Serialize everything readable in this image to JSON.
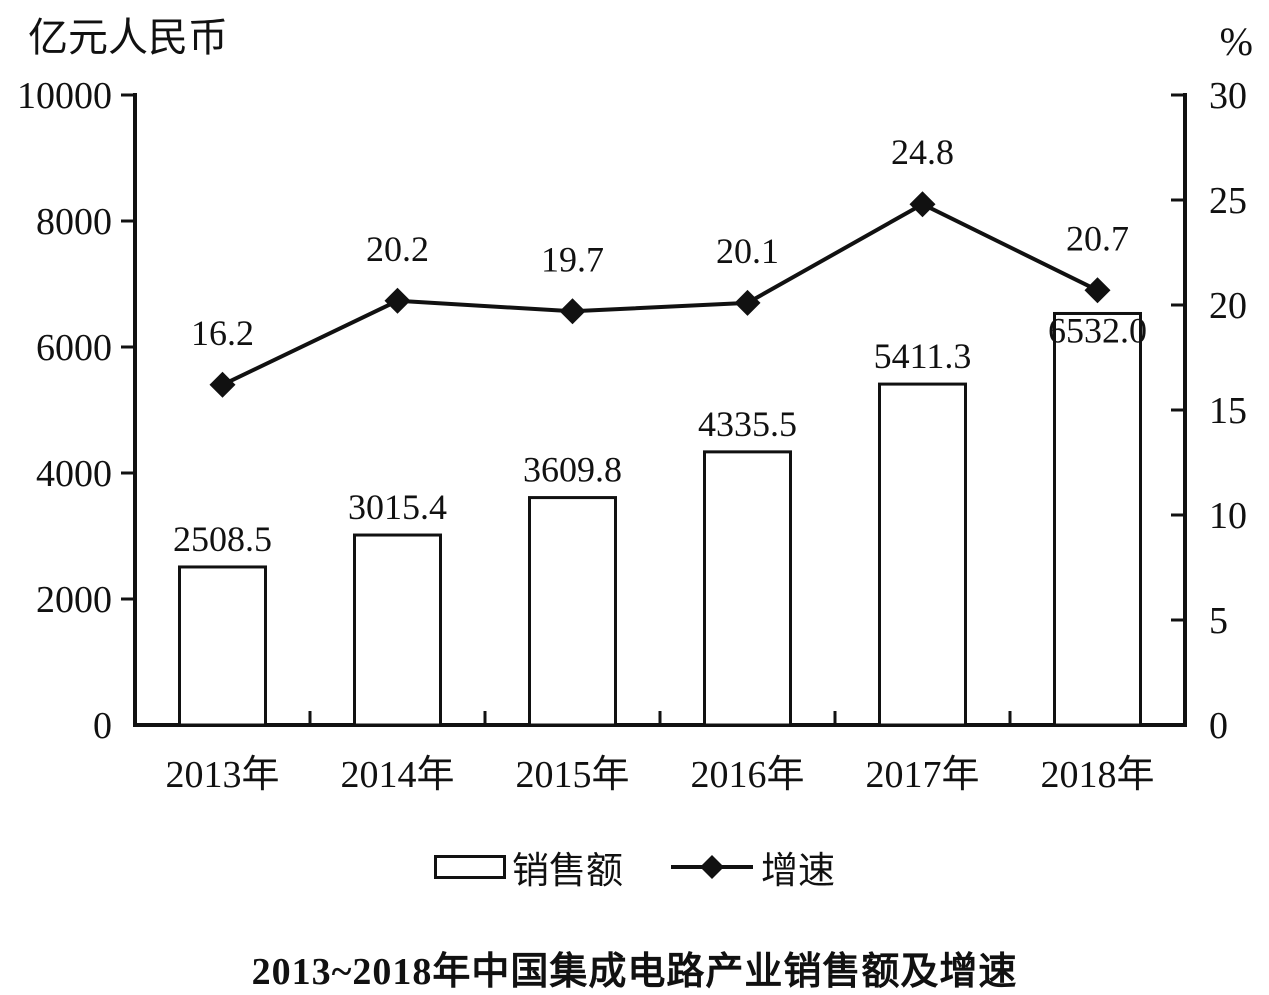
{
  "chart_data": {
    "type": "bar+line",
    "title": "2013~2018年中国集成电路产业销售额及增速",
    "categories": [
      "2013年",
      "2014年",
      "2015年",
      "2016年",
      "2017年",
      "2018年"
    ],
    "series": [
      {
        "name": "销售额",
        "type": "bar",
        "axis": "left",
        "values": [
          2508.5,
          3015.4,
          3609.8,
          4335.5,
          5411.3,
          6532.0
        ]
      },
      {
        "name": "增速",
        "type": "line",
        "axis": "right",
        "marker": "diamond",
        "values": [
          16.2,
          20.2,
          19.7,
          20.1,
          24.8,
          20.7
        ]
      }
    ],
    "left_axis": {
      "unit": "亿元人民币",
      "min": 0,
      "max": 10000,
      "ticks": [
        0,
        2000,
        4000,
        6000,
        8000,
        10000
      ]
    },
    "right_axis": {
      "unit": "%",
      "min": 0,
      "max": 30,
      "ticks": [
        0,
        5,
        10,
        15,
        20,
        25,
        30
      ]
    },
    "legend": [
      "销售额",
      "增速"
    ],
    "legend_position": "bottom",
    "grid": false,
    "colors": {
      "stroke": "#111111",
      "bar_fill": "#ffffff",
      "background": "#ffffff"
    }
  }
}
